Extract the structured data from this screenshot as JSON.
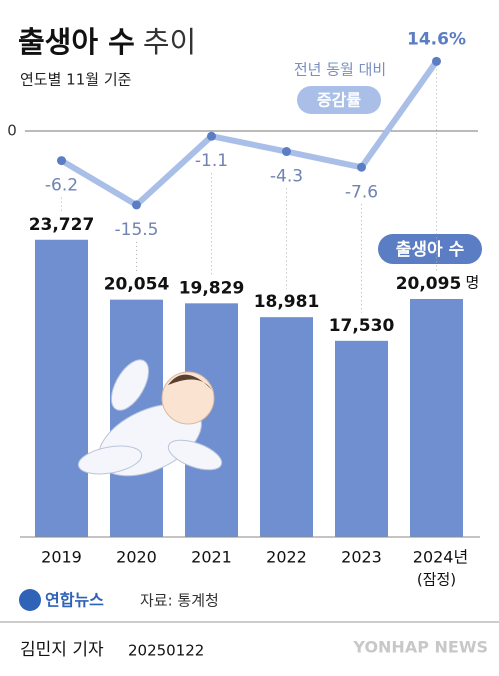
{
  "chart_data": {
    "type": "bar",
    "title": "출생아 수",
    "title_suffix": "추이",
    "subtitle": "연도별 11월 기준",
    "categories": [
      "2019",
      "2020",
      "2021",
      "2022",
      "2023",
      "2024년"
    ],
    "category_note": "(잠정)",
    "values": [
      23727,
      20054,
      19829,
      18981,
      17530,
      20095
    ],
    "value_labels": [
      "23,727",
      "20,054",
      "19,829",
      "18,981",
      "17,530",
      "20,095"
    ],
    "unit": "명",
    "bar_badge": "출생아 수",
    "color": "#6f8fd0",
    "ylim": [
      5500,
      25000
    ],
    "line": {
      "type": "line",
      "label": "전년 동월 대비",
      "badge": "증감률",
      "axis": "y2",
      "color": "#a9bfe8",
      "marker_color": "#5b7dc4",
      "values": [
        -6.2,
        -15.5,
        -1.1,
        -4.3,
        -7.6,
        14.6
      ],
      "value_labels": [
        "-6.2",
        "-15.5",
        "-1.1",
        "-4.3",
        "-7.6",
        "14.6%"
      ]
    },
    "y2lim": [
      -20,
      20
    ],
    "y2ticks": [
      0
    ],
    "logo": "연합뉴스",
    "source": "자료: 통계청",
    "byline": "김민지 기자",
    "date": "20250122",
    "watermark": "YONHAP NEWS"
  }
}
